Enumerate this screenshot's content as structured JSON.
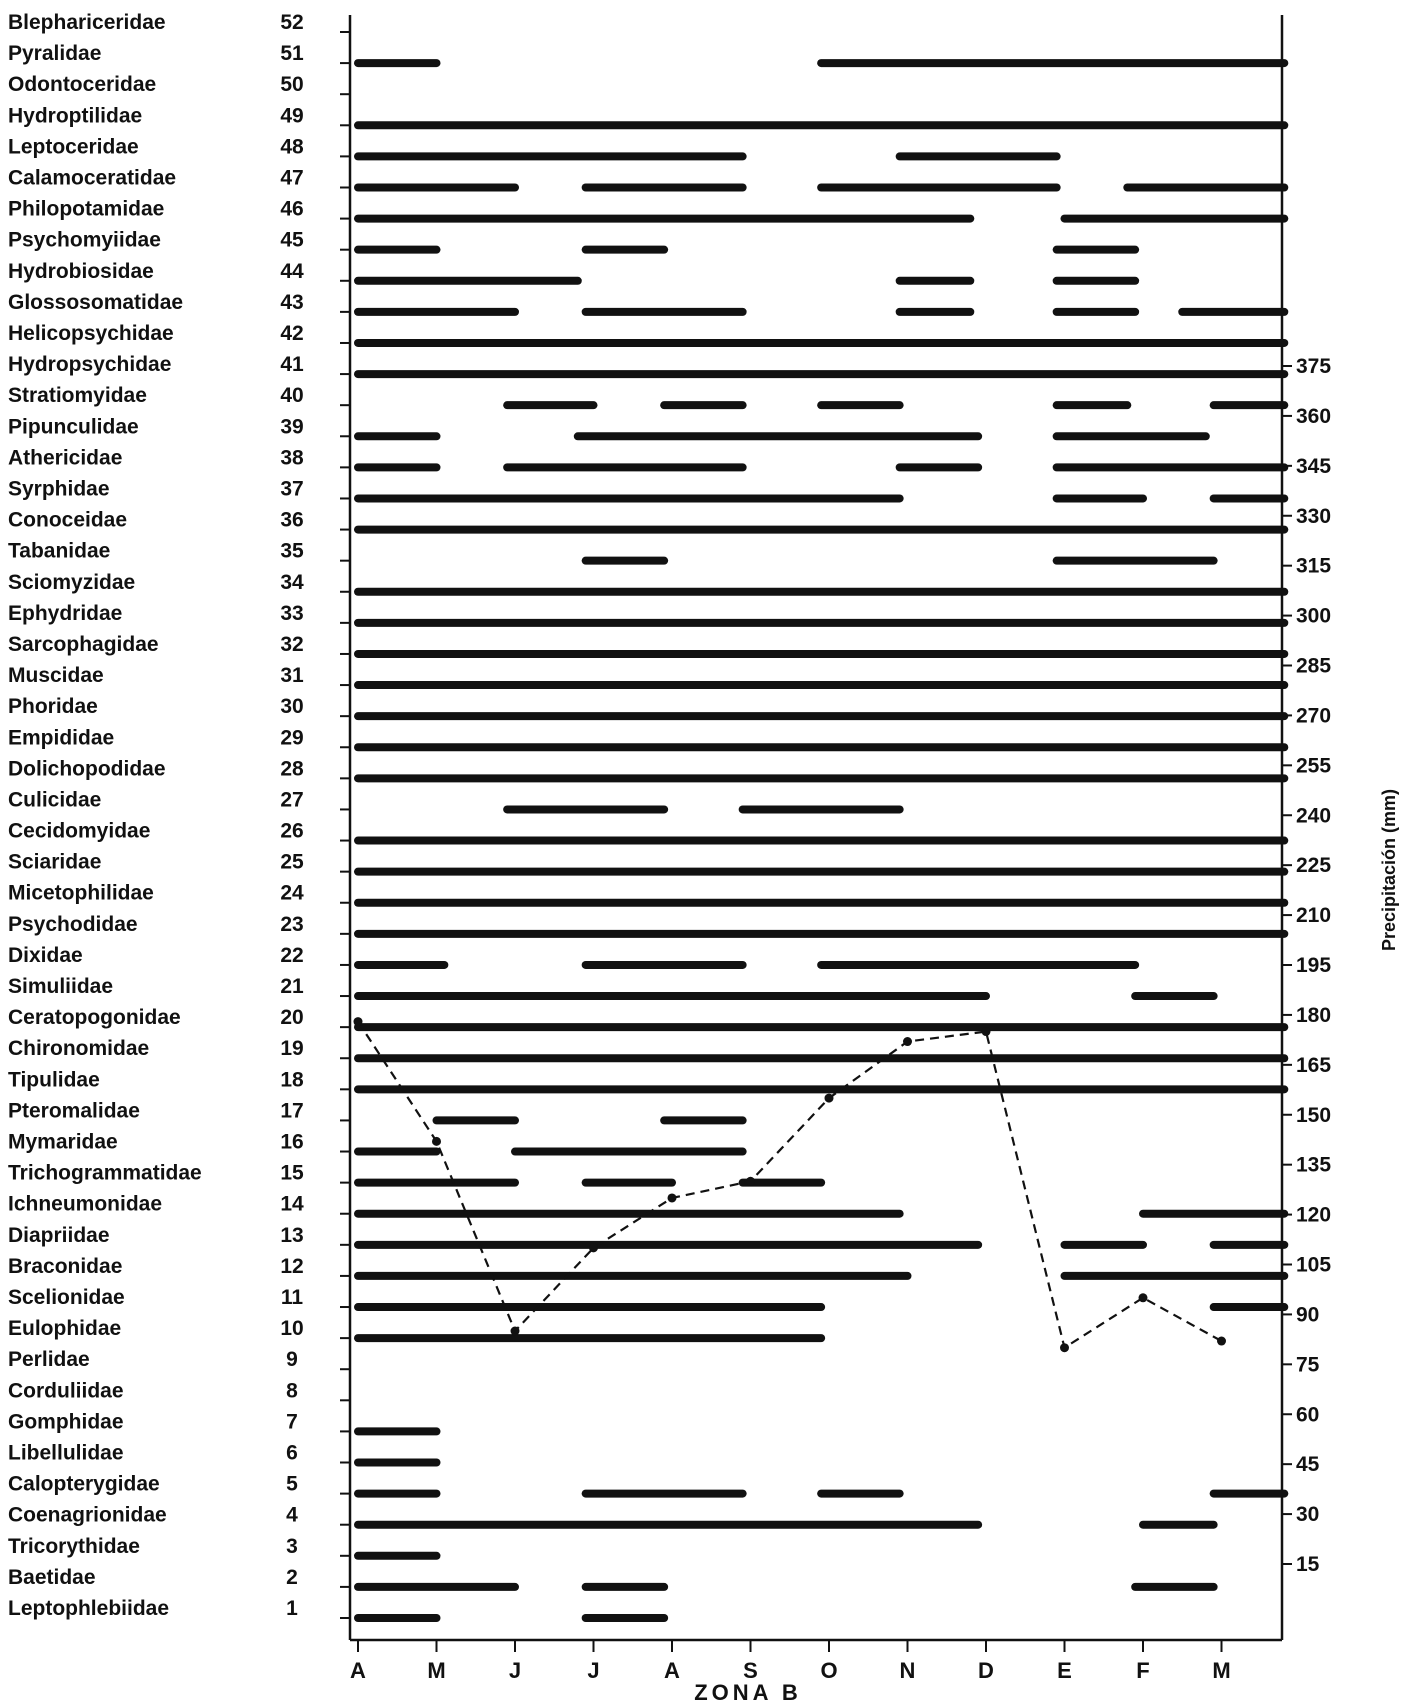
{
  "chart_data": {
    "type": "timeline",
    "title": "ZONA B",
    "ylabel_right": "Precipitación (mm)",
    "months": [
      "A",
      "M",
      "J",
      "J",
      "A",
      "S",
      "O",
      "N",
      "D",
      "E",
      "F",
      "M"
    ],
    "right_axis": {
      "ticks": [
        15,
        30,
        45,
        60,
        75,
        90,
        105,
        120,
        135,
        150,
        165,
        180,
        195,
        210,
        225,
        240,
        255,
        270,
        285,
        300,
        315,
        330,
        345,
        360,
        375
      ]
    },
    "families": [
      {
        "id": 52,
        "name": "Blephariceridae",
        "bars": []
      },
      {
        "id": 51,
        "name": "Pyralidae",
        "bars": [
          [
            0,
            1
          ],
          [
            5.9,
            11.8
          ]
        ]
      },
      {
        "id": 50,
        "name": "Odontoceridae",
        "bars": []
      },
      {
        "id": 49,
        "name": "Hydroptilidae",
        "bars": [
          [
            0,
            11.8
          ]
        ]
      },
      {
        "id": 48,
        "name": "Leptoceridae",
        "bars": [
          [
            0,
            4.9
          ],
          [
            6.9,
            8.9
          ]
        ]
      },
      {
        "id": 47,
        "name": "Calamoceratidae",
        "bars": [
          [
            0,
            2
          ],
          [
            2.9,
            4.9
          ],
          [
            5.9,
            8.9
          ],
          [
            9.8,
            11.8
          ]
        ]
      },
      {
        "id": 46,
        "name": "Philopotamidae",
        "bars": [
          [
            0,
            7.8
          ],
          [
            9,
            11.8
          ]
        ]
      },
      {
        "id": 45,
        "name": "Psychomyiidae",
        "bars": [
          [
            0,
            1
          ],
          [
            2.9,
            3.9
          ],
          [
            8.9,
            9.9
          ]
        ]
      },
      {
        "id": 44,
        "name": "Hydrobiosidae",
        "bars": [
          [
            0,
            2.8
          ],
          [
            6.9,
            7.8
          ],
          [
            8.9,
            9.9
          ]
        ]
      },
      {
        "id": 43,
        "name": "Glossosomatidae",
        "bars": [
          [
            0,
            2
          ],
          [
            2.9,
            4.9
          ],
          [
            6.9,
            7.8
          ],
          [
            8.9,
            9.9
          ],
          [
            10.5,
            11.8
          ]
        ]
      },
      {
        "id": 42,
        "name": "Helicopsychidae",
        "bars": [
          [
            0,
            11.8
          ]
        ]
      },
      {
        "id": 41,
        "name": "Hydropsychidae",
        "bars": [
          [
            0,
            11.8
          ]
        ]
      },
      {
        "id": 40,
        "name": "Stratiomyidae",
        "bars": [
          [
            1.9,
            3
          ],
          [
            3.9,
            4.9
          ],
          [
            5.9,
            6.9
          ],
          [
            8.9,
            9.8
          ],
          [
            10.9,
            11.8
          ]
        ]
      },
      {
        "id": 39,
        "name": "Pipunculidae",
        "bars": [
          [
            0,
            1
          ],
          [
            2.8,
            7.9
          ],
          [
            8.9,
            10.8
          ]
        ]
      },
      {
        "id": 38,
        "name": "Athericidae",
        "bars": [
          [
            0,
            1
          ],
          [
            1.9,
            4.9
          ],
          [
            6.9,
            7.9
          ],
          [
            8.9,
            11.8
          ]
        ]
      },
      {
        "id": 37,
        "name": "Syrphidae",
        "bars": [
          [
            0,
            6.9
          ],
          [
            8.9,
            10
          ],
          [
            10.9,
            11.8
          ]
        ]
      },
      {
        "id": 36,
        "name": "Conoceidae",
        "bars": [
          [
            0,
            11.8
          ]
        ]
      },
      {
        "id": 35,
        "name": "Tabanidae",
        "bars": [
          [
            2.9,
            3.9
          ],
          [
            8.9,
            10.9
          ]
        ]
      },
      {
        "id": 34,
        "name": "Sciomyzidae",
        "bars": [
          [
            0,
            11.8
          ]
        ]
      },
      {
        "id": 33,
        "name": "Ephydridae",
        "bars": [
          [
            0,
            11.8
          ]
        ]
      },
      {
        "id": 32,
        "name": "Sarcophagidae",
        "bars": [
          [
            0,
            11.8
          ]
        ]
      },
      {
        "id": 31,
        "name": "Muscidae",
        "bars": [
          [
            0,
            11.8
          ]
        ]
      },
      {
        "id": 30,
        "name": "Phoridae",
        "bars": [
          [
            0,
            11.8
          ]
        ]
      },
      {
        "id": 29,
        "name": "Empididae",
        "bars": [
          [
            0,
            11.8
          ]
        ]
      },
      {
        "id": 28,
        "name": "Dolichopodidae",
        "bars": [
          [
            0,
            11.8
          ]
        ]
      },
      {
        "id": 27,
        "name": "Culicidae",
        "bars": [
          [
            1.9,
            3.9
          ],
          [
            4.9,
            6.9
          ]
        ]
      },
      {
        "id": 26,
        "name": "Cecidomyidae",
        "bars": [
          [
            0,
            11.8
          ]
        ]
      },
      {
        "id": 25,
        "name": "Sciaridae",
        "bars": [
          [
            0,
            11.8
          ]
        ]
      },
      {
        "id": 24,
        "name": "Micetophilidae",
        "bars": [
          [
            0,
            11.8
          ]
        ]
      },
      {
        "id": 23,
        "name": "Psychodidae",
        "bars": [
          [
            0,
            11.8
          ]
        ]
      },
      {
        "id": 22,
        "name": "Dixidae",
        "bars": [
          [
            0,
            1.1
          ],
          [
            2.9,
            4.9
          ],
          [
            5.9,
            9.9
          ]
        ]
      },
      {
        "id": 21,
        "name": "Simuliidae",
        "bars": [
          [
            0,
            8
          ],
          [
            9.9,
            10.9
          ]
        ]
      },
      {
        "id": 20,
        "name": "Ceratopogonidae",
        "bars": [
          [
            0,
            11.8
          ]
        ]
      },
      {
        "id": 19,
        "name": "Chironomidae",
        "bars": [
          [
            0,
            11.8
          ]
        ]
      },
      {
        "id": 18,
        "name": "Tipulidae",
        "bars": [
          [
            0,
            11.8
          ]
        ]
      },
      {
        "id": 17,
        "name": "Pteromalidae",
        "bars": [
          [
            1,
            2
          ],
          [
            3.9,
            4.9
          ]
        ]
      },
      {
        "id": 16,
        "name": "Mymaridae",
        "bars": [
          [
            0,
            1
          ],
          [
            2,
            4.9
          ]
        ]
      },
      {
        "id": 15,
        "name": "Trichogrammatidae",
        "bars": [
          [
            0,
            2
          ],
          [
            2.9,
            4
          ],
          [
            4.9,
            5.9
          ]
        ]
      },
      {
        "id": 14,
        "name": "Ichneumonidae",
        "bars": [
          [
            0,
            6.9
          ],
          [
            10,
            11.8
          ]
        ]
      },
      {
        "id": 13,
        "name": "Diapriidae",
        "bars": [
          [
            0,
            7.9
          ],
          [
            9,
            10
          ],
          [
            10.9,
            11.8
          ]
        ]
      },
      {
        "id": 12,
        "name": "Braconidae",
        "bars": [
          [
            0,
            7
          ],
          [
            9,
            11.8
          ]
        ]
      },
      {
        "id": 11,
        "name": "Scelionidae",
        "bars": [
          [
            0,
            5.9
          ],
          [
            10.9,
            11.8
          ]
        ]
      },
      {
        "id": 10,
        "name": "Eulophidae",
        "bars": [
          [
            0,
            5.9
          ]
        ]
      },
      {
        "id": 9,
        "name": "Perlidae",
        "bars": []
      },
      {
        "id": 8,
        "name": "Corduliidae",
        "bars": []
      },
      {
        "id": 7,
        "name": "Gomphidae",
        "bars": [
          [
            0,
            1
          ]
        ]
      },
      {
        "id": 6,
        "name": "Libellulidae",
        "bars": [
          [
            0,
            1
          ]
        ]
      },
      {
        "id": 5,
        "name": "Calopterygidae",
        "bars": [
          [
            0,
            1
          ],
          [
            2.9,
            4.9
          ],
          [
            5.9,
            6.9
          ],
          [
            10.9,
            11.8
          ]
        ]
      },
      {
        "id": 4,
        "name": "Coenagrionidae",
        "bars": [
          [
            0,
            7.9
          ],
          [
            10,
            10.9
          ]
        ]
      },
      {
        "id": 3,
        "name": "Tricorythidae",
        "bars": [
          [
            0,
            1
          ]
        ]
      },
      {
        "id": 2,
        "name": "Baetidae",
        "bars": [
          [
            0,
            2
          ],
          [
            2.9,
            3.9
          ],
          [
            9.9,
            10.9
          ]
        ]
      },
      {
        "id": 1,
        "name": "Leptophlebiidae",
        "bars": [
          [
            0,
            1
          ],
          [
            2.9,
            3.9
          ]
        ]
      }
    ],
    "precipitation": {
      "x": [
        0,
        1,
        2,
        3,
        4,
        5,
        6,
        7,
        8,
        9,
        10,
        11
      ],
      "y": [
        178,
        142,
        85,
        110,
        125,
        130,
        155,
        172,
        175,
        80,
        95,
        82
      ]
    }
  }
}
